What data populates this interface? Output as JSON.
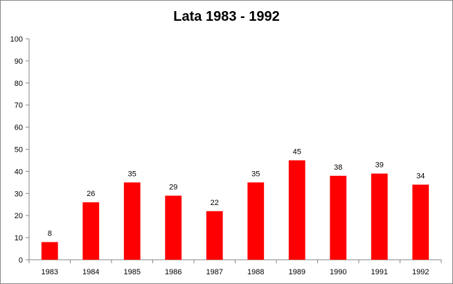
{
  "chart_data": {
    "type": "bar",
    "title": "Lata 1983 - 1992",
    "xlabel": "",
    "ylabel": "",
    "categories": [
      "1983",
      "1984",
      "1985",
      "1986",
      "1987",
      "1988",
      "1989",
      "1990",
      "1991",
      "1992"
    ],
    "values": [
      8,
      26,
      35,
      29,
      22,
      35,
      45,
      38,
      39,
      34
    ],
    "data_labels": [
      "8",
      "26",
      "35",
      "29",
      "22",
      "35",
      "45",
      "38",
      "39",
      "34"
    ],
    "ylim": [
      0,
      100
    ],
    "yticks": [
      "0",
      "10",
      "20",
      "30",
      "40",
      "50",
      "60",
      "70",
      "80",
      "90",
      "100"
    ],
    "grid": false,
    "legend": "none",
    "bar_color": "#ff0000"
  }
}
